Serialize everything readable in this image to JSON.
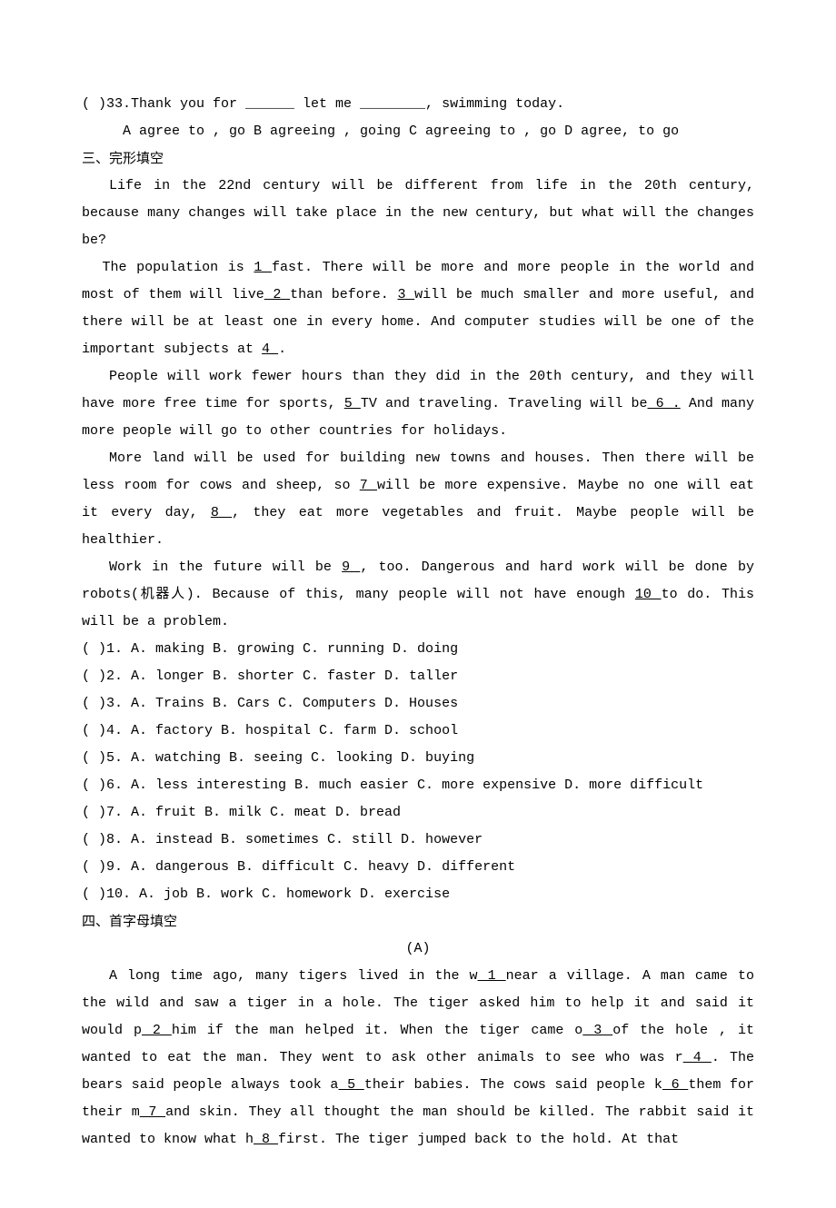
{
  "q33": {
    "stem_prefix": "(   )33.Thank you for ______ let me ________, swimming today.",
    "options": "A agree to , go     B agreeing , going     C agreeing to , go     D agree, to go"
  },
  "section3": {
    "heading": "三、完形填空",
    "para1": "Life in the 22nd century will be different from life in the 20th century, because many changes will take place in the new century, but what will the changes be?",
    "para2_a": "The population is ",
    "blank1": "  1  ",
    "para2_b": " fast. There will be more and more people in the world and most of them will live",
    "blank2": "  2 ",
    "para2_c": "than before. ",
    "blank3": " 3 ",
    "para2_d": "will be much smaller and more useful, and there will be at least one in every home. And computer studies will be one of the important subjects at ",
    "blank4": "  4  ",
    "para2_e": ".",
    "para3_a": "People will work fewer hours than they did in the 20th century, and they will have more free time for sports, ",
    "blank5": "  5   ",
    "para3_b": "TV and traveling. Traveling will be",
    "blank6": "  6  .",
    "para3_c": " And many more people will go to other countries for holidays.",
    "para4_a": "More land will be used for building new towns and houses. Then there will be less room for cows and sheep, so ",
    "blank7": " 7   ",
    "para4_b": " will be more expensive. Maybe no one will eat it every day, ",
    "blank8": " 8    ",
    "para4_c": ", they eat more vegetables and fruit. Maybe people will be healthier.",
    "para5_a": "Work in the future will be ",
    "blank9": "  9  ",
    "para5_b": ", too. Dangerous and hard work will be done by robots(机器人). Because of this, many people will not have enough ",
    "blank10": "  10 ",
    "para5_c": " to do. This will be a problem.",
    "choices": [
      "(   )1. A. making          B. growing         C. running        D. doing",
      "(   )2. A. longer          B. shorter              C. faster       D. taller",
      "(   )3. A. Trains          B. Cars            C. Computers   D. Houses",
      "(   )4. A. factory         B. hospital         C. farm          D. school",
      "(   )5. A. watching       B. seeing           C. looking        D. buying",
      "(   )6. A. less interesting    B. much easier     C. more expensive   D. more difficult",
      "(   )7. A. fruit            B. milk          C. meat           D. bread",
      "(   )8. A. instead     B. sometimes          C. still        D. however",
      "(   )9. A. dangerous                  B. difficult         C. heavy            D. different",
      "(   )10. A. job           B. work            C. homework          D. exercise"
    ]
  },
  "section4": {
    "heading": "四、首字母填空",
    "subheading": "(A)",
    "text_a": "A long time ago, many tigers lived in the w",
    "b1": "  1  ",
    "text_b": " near a village. A man came to the wild and saw a tiger in a hole. The tiger asked him to help it and said it would p",
    "b2": "  2  ",
    "text_c": " him if the man helped it. When the tiger came o",
    "b3": "  3  ",
    "text_d": " of the hole , it wanted to eat the man. They went to ask other animals to see who was r",
    "b4": "  4  ",
    "text_e": ". The bears said people always took a",
    "b5": "  5  ",
    "text_f": " their babies. The cows said people k",
    "b6": "  6  ",
    "text_g": " them for their m",
    "b7": "  7  ",
    "text_h": " and skin. They all thought the man should be killed. The rabbit said it wanted to know what h",
    "b8": "  8  ",
    "text_i": " first. The tiger jumped back to the hold. At that"
  }
}
